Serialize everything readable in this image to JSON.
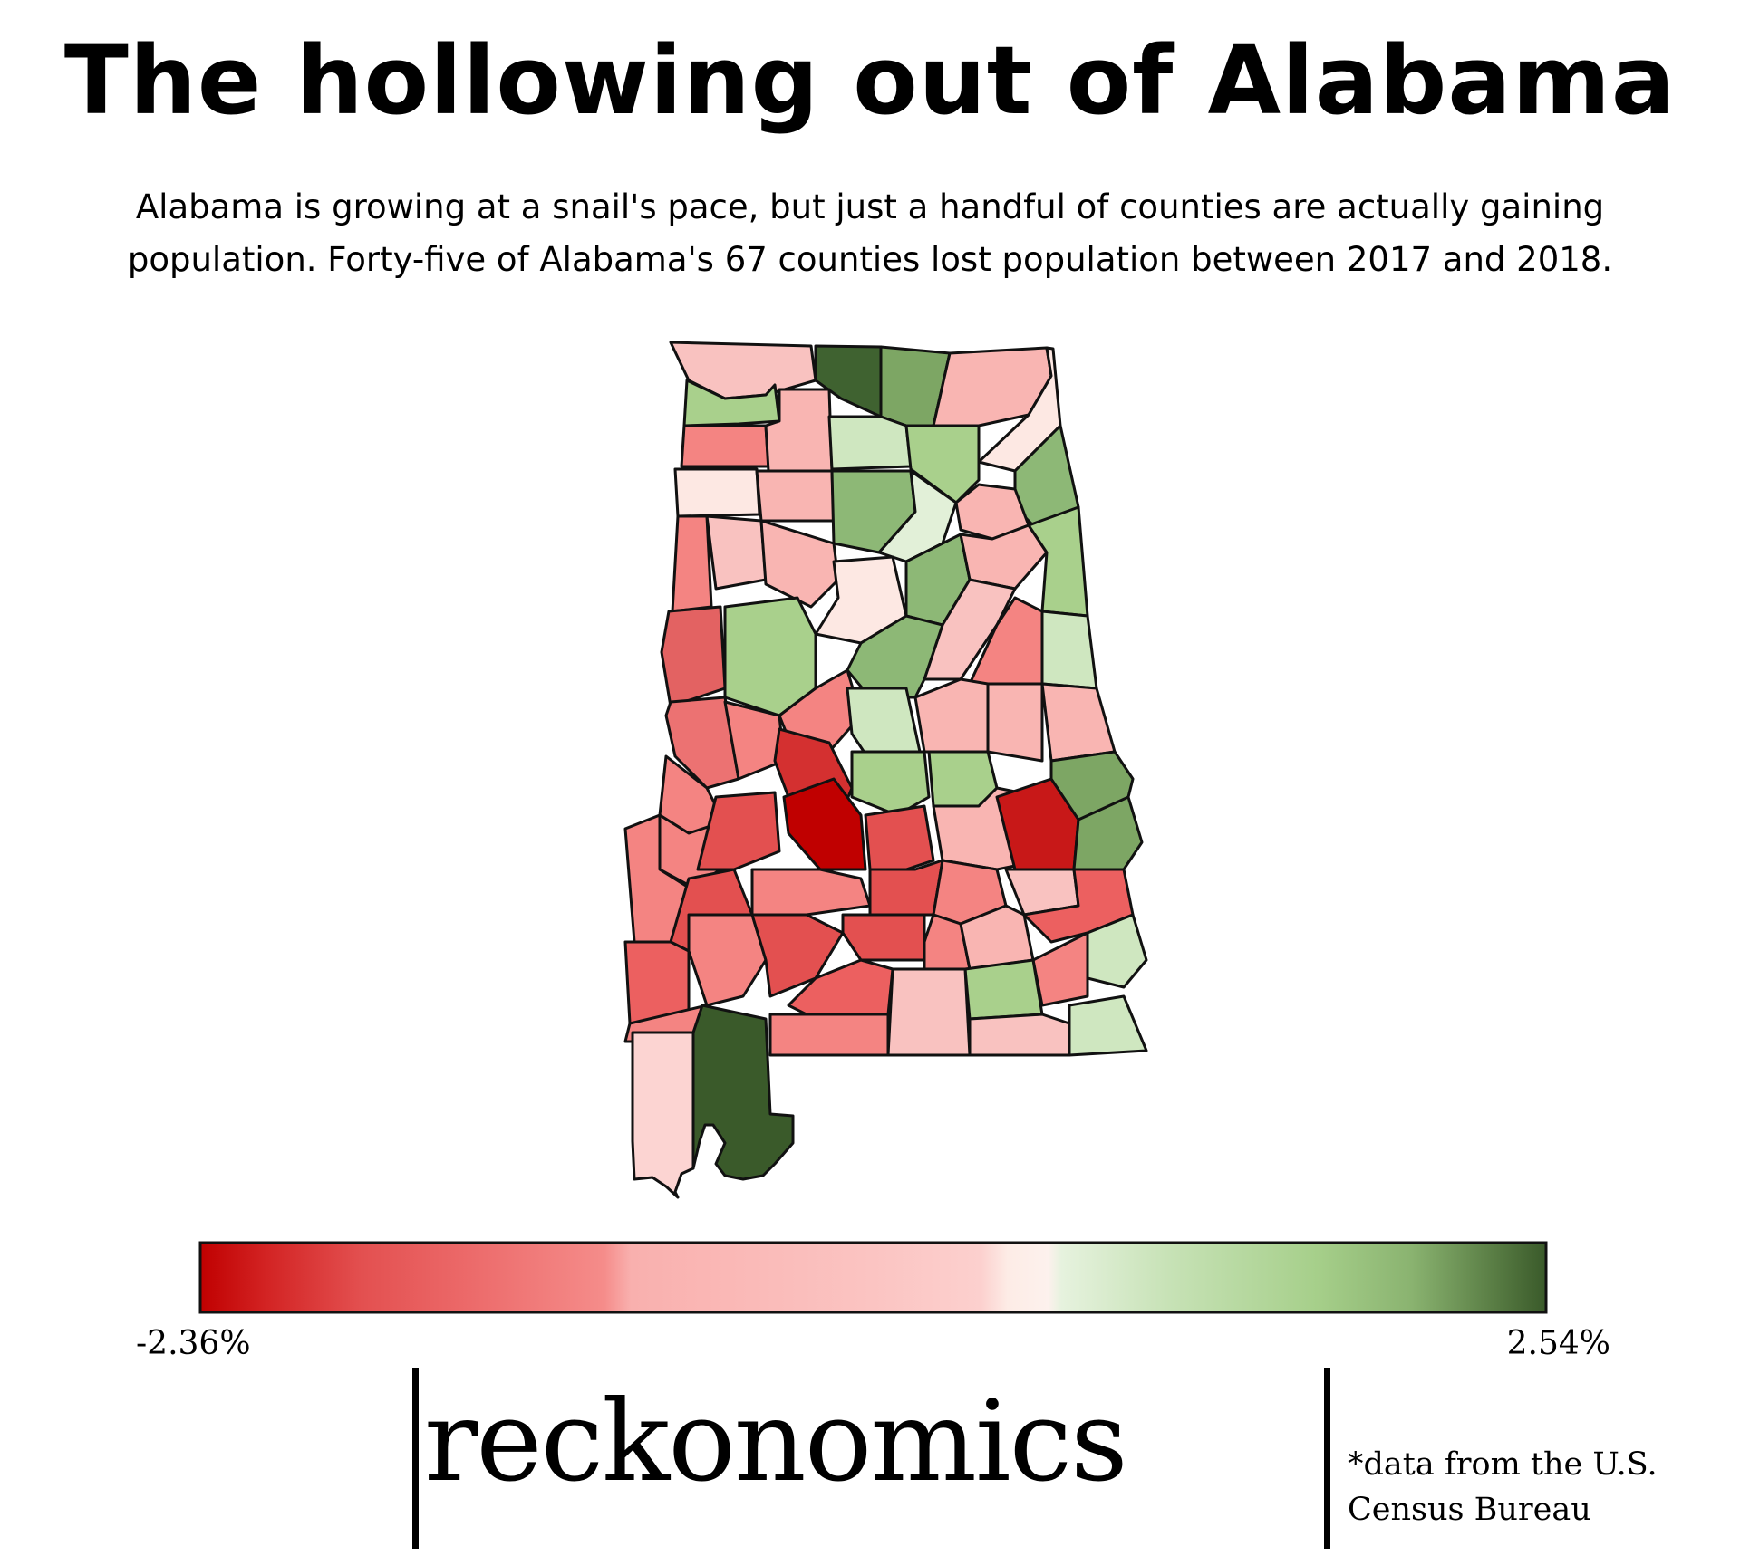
{
  "title": "The hollowing out of Alabama",
  "subtitle_lines": [
    "Alabama is growing at a snail's pace, but just a handful of counties are actually gaining",
    "population. Forty-five of Alabama's 67 counties lost population between 2017 and 2018."
  ],
  "legend": {
    "min_label": "-2.36%",
    "max_label": "2.54%",
    "min_value": -2.36,
    "max_value": 2.54,
    "min_color": "#c00000",
    "mid_color": "#fdece6",
    "max_color": "#3a5a2a"
  },
  "brand": {
    "name": "reckonomics"
  },
  "source_lines": [
    "*data from the U.S.",
    "Census Bureau"
  ]
}
